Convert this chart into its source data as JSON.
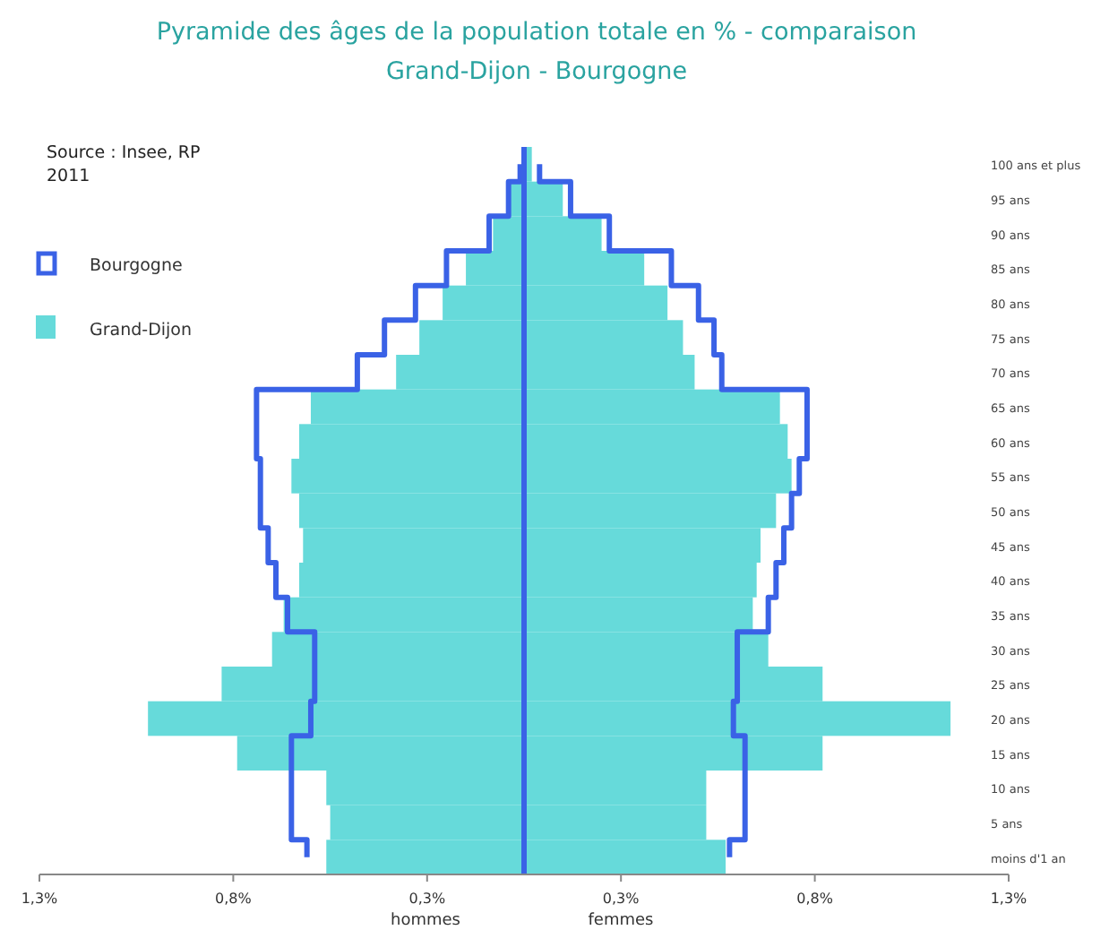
{
  "chart_data": {
    "type": "bar",
    "orientation": "horizontal",
    "stacked": true,
    "title": "Pyramide des âges de la population totale en % - comparaison",
    "subtitle": "Grand-Dijon - Bourgogne",
    "categories": [
      "100 ans et plus",
      "95 ans",
      "90 ans",
      "85 ans",
      "80 ans",
      "75 ans",
      "70 ans",
      "65 ans",
      "60 ans",
      "55 ans",
      "50 ans",
      "45 ans",
      "40 ans",
      "35 ans",
      "30 ans",
      "25 ans",
      "20 ans",
      "15 ans",
      "10 ans",
      "5 ans",
      "moins d'1 an"
    ],
    "series": [
      {
        "name": "Bourgogne",
        "type": "step",
        "color": "#3a62e6",
        "values": [
          -0.01,
          -0.04,
          -0.09,
          -0.2,
          -0.28,
          -0.36,
          -0.43,
          -0.69,
          -0.69,
          -0.68,
          -0.68,
          -0.66,
          -0.64,
          -0.61,
          -0.54,
          -0.54,
          -0.55,
          -0.6,
          -0.6,
          -0.6,
          -0.56
        ]
      },
      {
        "type": "step",
        "color": "#3a62e6",
        "values": [
          0.04,
          0.12,
          0.22,
          0.38,
          0.45,
          0.49,
          0.51,
          0.73,
          0.73,
          0.71,
          0.69,
          0.67,
          0.65,
          0.63,
          0.55,
          0.55,
          0.54,
          0.57,
          0.57,
          0.57,
          0.53
        ]
      },
      {
        "name": "Grand-Dijon",
        "color": "#66dada",
        "values": [
          null,
          -0.04,
          -0.08,
          -0.15,
          -0.21,
          -0.27,
          -0.33,
          -0.55,
          -0.58,
          -0.6,
          -0.58,
          -0.57,
          -0.58,
          -0.62,
          -0.65,
          -0.78,
          -0.97,
          -0.74,
          -0.51,
          -0.5,
          -0.51
        ]
      },
      {
        "color": "#66dada",
        "values": [
          0.02,
          0.1,
          0.2,
          0.31,
          0.37,
          0.41,
          0.44,
          0.66,
          0.68,
          0.69,
          0.65,
          0.61,
          0.6,
          0.59,
          0.63,
          0.77,
          1.1,
          0.77,
          0.47,
          0.47,
          0.52
        ]
      }
    ],
    "ref_lines": [
      {
        "axis": "x",
        "value": 0,
        "color": "#3a62e6"
      }
    ],
    "xlim": [
      -1.25,
      1.25
    ],
    "xticks": [
      {
        "value": -1.25,
        "label": "1,3%"
      },
      {
        "value": -0.75,
        "label": "0,8%"
      },
      {
        "value": -0.25,
        "label": "0,3%"
      },
      {
        "value": 0.25,
        "label": "0,3%"
      },
      {
        "value": 0.75,
        "label": "0,8%"
      },
      {
        "value": 1.25,
        "label": "1,3%"
      }
    ],
    "legend": "top left",
    "annotations": [
      "Source : Insee, RP\n2011",
      "hommes",
      "femmes"
    ]
  }
}
